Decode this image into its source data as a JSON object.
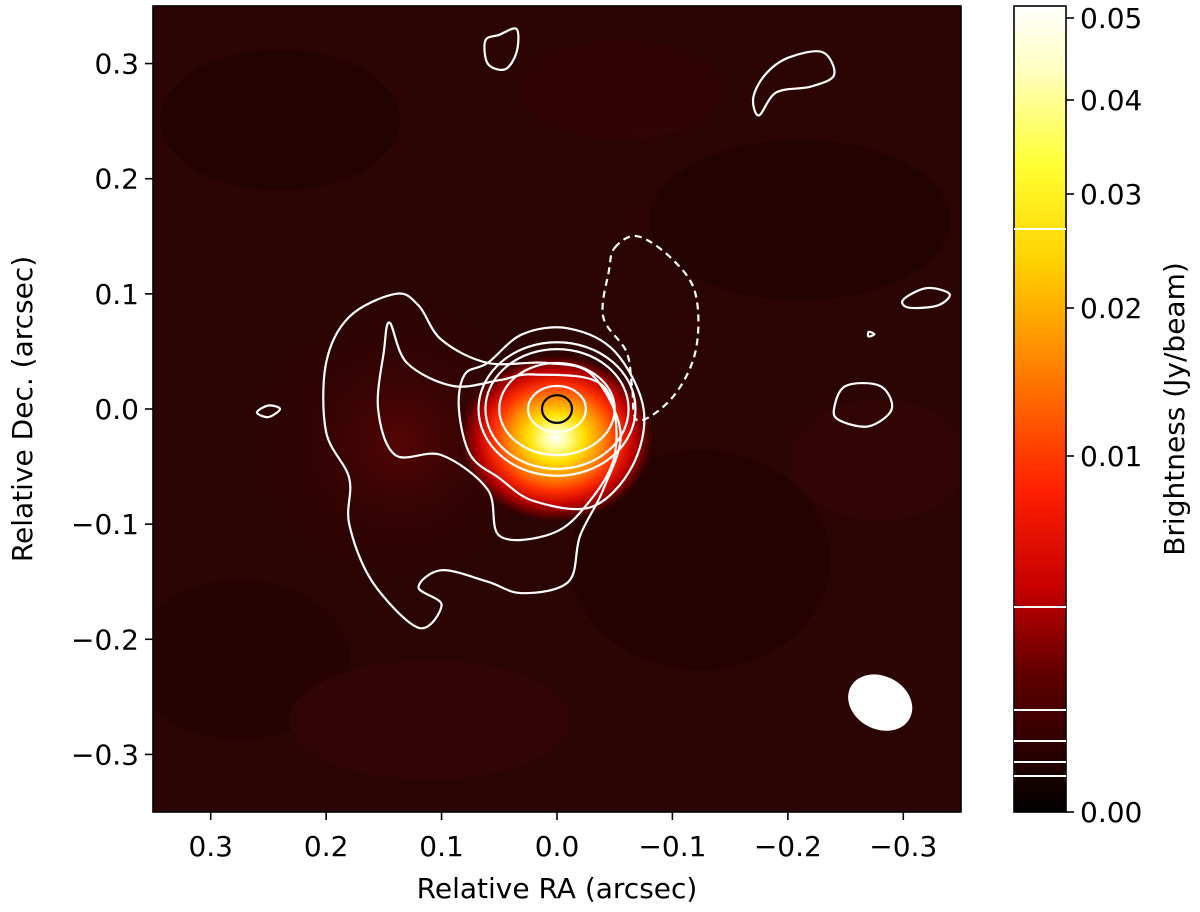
{
  "chart_data": {
    "type": "heatmap",
    "title": "",
    "xlabel": "Relative RA (arcsec)",
    "ylabel": "Relative Dec. (arcsec)",
    "xlim": [
      0.35,
      -0.35
    ],
    "ylim": [
      -0.35,
      0.35
    ],
    "x_ticks": [
      0.3,
      0.2,
      0.1,
      0.0,
      -0.1,
      -0.2,
      -0.3
    ],
    "x_tick_labels": [
      "0.3",
      "0.2",
      "0.1",
      "0.0",
      "−0.1",
      "−0.2",
      "−0.3"
    ],
    "y_ticks": [
      0.3,
      0.2,
      0.1,
      0.0,
      -0.1,
      -0.2,
      -0.3
    ],
    "y_tick_labels": [
      "0.3",
      "0.2",
      "0.1",
      "0.0",
      "−0.1",
      "−0.2",
      "−0.3"
    ],
    "grid": false,
    "colormap": "afmhot",
    "colorbar": {
      "label": "Brightness (Jy/beam)",
      "range": [
        0.0,
        0.051
      ],
      "scale": "nonlinear",
      "ticks": [
        0.0,
        0.01,
        0.02,
        0.03,
        0.04,
        0.05
      ],
      "tick_labels": [
        "0.00",
        "0.01",
        "0.02",
        "0.03",
        "0.04",
        "0.05"
      ],
      "contour_level_marks": [
        0.0027,
        0.0018,
        0.0014,
        0.0011,
        0.0005,
        0.0282
      ]
    },
    "peak": {
      "x": 0.0,
      "y": 0.0,
      "value": 0.051
    },
    "beam": {
      "x": -0.28,
      "y": -0.255,
      "major": 0.058,
      "minor": 0.046,
      "note": "synthesized beam ellipse"
    },
    "contours": [
      {
        "level": "negative",
        "style": "dashed",
        "points": [
          [
            -0.05,
            0.14
          ],
          [
            -0.07,
            0.15
          ],
          [
            -0.1,
            0.13
          ],
          [
            -0.12,
            0.1
          ],
          [
            -0.12,
            0.05
          ],
          [
            -0.1,
            0.01
          ],
          [
            -0.07,
            -0.01
          ],
          [
            -0.065,
            0.02
          ],
          [
            -0.06,
            0.05
          ],
          [
            -0.04,
            0.08
          ],
          [
            -0.045,
            0.12
          ]
        ]
      },
      {
        "level": 1,
        "style": "solid",
        "points": [
          [
            0.2,
            0.04
          ],
          [
            0.18,
            0.08
          ],
          [
            0.14,
            0.1
          ],
          [
            0.12,
            0.09
          ],
          [
            0.1,
            0.06
          ],
          [
            0.06,
            0.04
          ],
          [
            0.01,
            0.04
          ],
          [
            -0.03,
            0.03
          ],
          [
            -0.055,
            -0.02
          ],
          [
            -0.04,
            -0.07
          ],
          [
            -0.02,
            -0.11
          ],
          [
            -0.01,
            -0.15
          ],
          [
            0.03,
            -0.16
          ],
          [
            0.06,
            -0.15
          ],
          [
            0.1,
            -0.14
          ],
          [
            0.12,
            -0.155
          ],
          [
            0.1,
            -0.17
          ],
          [
            0.12,
            -0.19
          ],
          [
            0.16,
            -0.15
          ],
          [
            0.18,
            -0.1
          ],
          [
            0.18,
            -0.06
          ],
          [
            0.2,
            -0.02
          ]
        ]
      },
      {
        "level": 2,
        "style": "solid",
        "points": [
          [
            0.145,
            0.075
          ],
          [
            0.13,
            0.04
          ],
          [
            0.09,
            0.02
          ],
          [
            0.05,
            0.025
          ],
          [
            0.02,
            0.03
          ],
          [
            -0.04,
            0.02
          ],
          [
            -0.05,
            -0.04
          ],
          [
            -0.02,
            -0.09
          ],
          [
            0.01,
            -0.11
          ],
          [
            0.05,
            -0.11
          ],
          [
            0.06,
            -0.07
          ],
          [
            0.1,
            -0.04
          ],
          [
            0.14,
            -0.04
          ],
          [
            0.155,
            0.0
          ],
          [
            0.15,
            0.05
          ]
        ]
      },
      {
        "level": 3,
        "style": "solid",
        "points": [
          [
            0.06,
            0.04
          ],
          [
            0.03,
            0.065
          ],
          [
            -0.01,
            0.07
          ],
          [
            -0.05,
            0.05
          ],
          [
            -0.075,
            0.0
          ],
          [
            -0.065,
            -0.05
          ],
          [
            -0.03,
            -0.085
          ],
          [
            0.02,
            -0.08
          ],
          [
            0.05,
            -0.06
          ],
          [
            0.075,
            -0.04
          ],
          [
            0.085,
            0.0
          ],
          [
            0.08,
            0.03
          ]
        ]
      },
      {
        "level": 4,
        "style": "ellipse",
        "cx": 0.0,
        "cy": 0.0,
        "rx": 0.068,
        "ry": 0.058
      },
      {
        "level": 5,
        "style": "ellipse",
        "cx": 0.0,
        "cy": 0.0,
        "rx": 0.062,
        "ry": 0.052
      },
      {
        "level": 6,
        "style": "ellipse",
        "cx": 0.0,
        "cy": 0.0,
        "rx": 0.05,
        "ry": 0.04
      },
      {
        "level": 7,
        "style": "ellipse",
        "cx": 0.0,
        "cy": 0.0,
        "rx": 0.025,
        "ry": 0.02
      },
      {
        "level": "peak",
        "style": "ellipse-black",
        "cx": 0.0,
        "cy": 0.0,
        "rx": 0.013,
        "ry": 0.012
      },
      {
        "level": 1,
        "style": "solid",
        "points": [
          [
            0.05,
            0.325
          ],
          [
            0.035,
            0.33
          ],
          [
            0.035,
            0.31
          ],
          [
            0.045,
            0.295
          ],
          [
            0.06,
            0.3
          ],
          [
            0.062,
            0.32
          ]
        ]
      },
      {
        "level": 1,
        "style": "solid",
        "points": [
          [
            -0.17,
            0.27
          ],
          [
            -0.18,
            0.29
          ],
          [
            -0.2,
            0.305
          ],
          [
            -0.23,
            0.31
          ],
          [
            -0.24,
            0.29
          ],
          [
            -0.22,
            0.28
          ],
          [
            -0.19,
            0.275
          ],
          [
            -0.175,
            0.255
          ]
        ]
      },
      {
        "level": 1,
        "style": "solid",
        "points": [
          [
            -0.3,
            0.095
          ],
          [
            -0.32,
            0.105
          ],
          [
            -0.34,
            0.1
          ],
          [
            -0.33,
            0.09
          ],
          [
            -0.305,
            0.088
          ]
        ]
      },
      {
        "level": 1,
        "style": "solid",
        "points": [
          [
            -0.24,
            0.0
          ],
          [
            -0.25,
            0.02
          ],
          [
            -0.28,
            0.02
          ],
          [
            -0.29,
            0.0
          ],
          [
            -0.27,
            -0.015
          ],
          [
            -0.245,
            -0.01
          ]
        ]
      },
      {
        "level": 1,
        "style": "solid",
        "points": [
          [
            0.26,
            -0.003
          ],
          [
            0.25,
            0.003
          ],
          [
            0.24,
            0.0
          ],
          [
            0.25,
            -0.007
          ]
        ]
      },
      {
        "level": 1,
        "style": "solid",
        "points": [
          [
            -0.27,
            0.067
          ],
          [
            -0.275,
            0.065
          ],
          [
            -0.27,
            0.063
          ]
        ]
      }
    ]
  }
}
